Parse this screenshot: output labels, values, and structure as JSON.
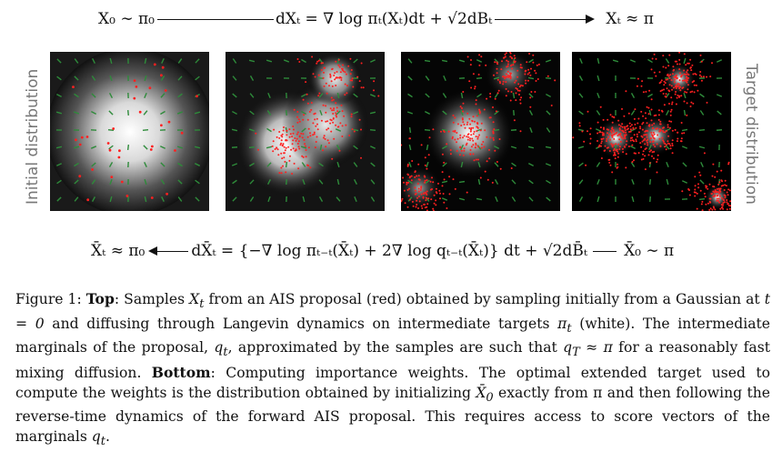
{
  "equations": {
    "top": {
      "start": "X₀ ∼ π₀",
      "sde": "dXₜ = ∇ log πₜ(Xₜ)dt + √2dBₜ",
      "end": "Xₜ ≈ π"
    },
    "bottom": {
      "start": "X̄ₜ ≈ π₀",
      "sde": "dX̄ₜ = {−∇ log πₜ₋ₜ(X̄ₜ) + 2∇ log qₜ₋ₜ(X̄ₜ)} dt + √2dB̄ₜ",
      "end": "X̄₀ ∼ π"
    }
  },
  "side_labels": {
    "left": "Initial distribution",
    "right": "Target distribution"
  },
  "colors": {
    "samples": "#ff2020",
    "vectors": "#2e8b3a",
    "background": "#000000",
    "density": "#ffffff"
  },
  "caption": {
    "prefix": "Figure 1: ",
    "top_label": "Top",
    "part1": ": Samples ",
    "x_t": "X",
    "sub_t": "t",
    "part2": " from an AIS proposal (red) obtained by sampling initially from a Gaussian at ",
    "t0": "t = 0",
    "part3": " and diffusing through Langevin dynamics on intermediate targets ",
    "pi_t": "π",
    "part4": " (white). The intermediate marginals of the proposal, ",
    "q_t": "q",
    "part5": ", approximated by the samples are such that ",
    "qT": "q",
    "subT": "T",
    "approx": " ≈ π",
    "part6": " for a reasonably fast mixing diffusion. ",
    "bottom_label": "Bottom",
    "part7": ": Computing importance weights. The optimal extended target used to compute the weights is the distribution obtained by initializing ",
    "x0bar": "X̄",
    "sub0": "0",
    "part8": " exactly from π and then following the reverse-time dynamics of the forward AIS proposal. This requires access to score vectors of the marginals ",
    "q_t2": "q",
    "part9": "."
  }
}
